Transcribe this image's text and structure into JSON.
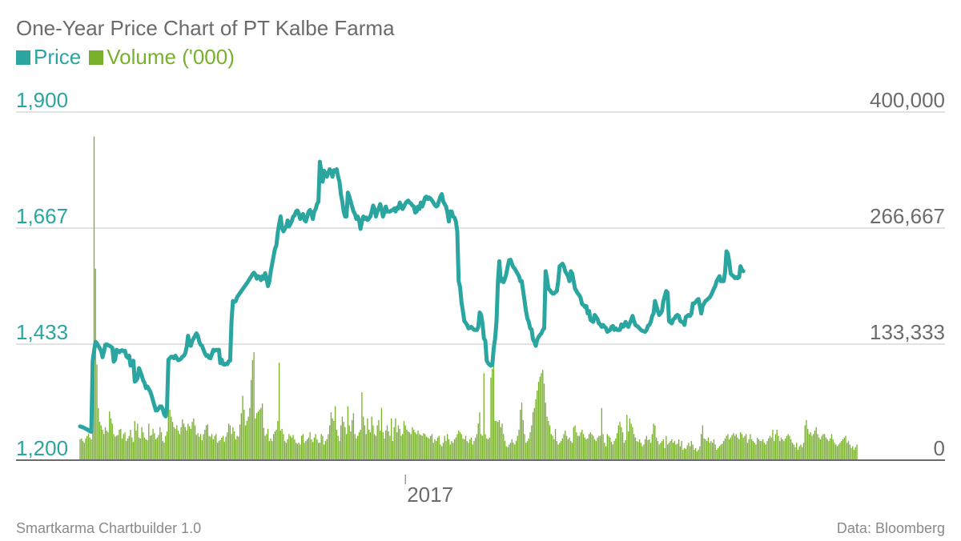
{
  "colors": {
    "price": "#2aa5a0",
    "volume": "#78b02b",
    "grid": "#e2e2e2",
    "axis": "#6b6b6b",
    "text": "#6b6b6b"
  },
  "footer": {
    "credit": "Smartkarma Chartbuilder 1.0",
    "source": "Data: Bloomberg"
  },
  "chart_data": {
    "type": "line",
    "title": "One-Year Price Chart of PT Kalbe Farma",
    "legend_position": "top-left",
    "grid": true,
    "x_ticks": [
      {
        "label": "2017",
        "index": 232
      }
    ],
    "y_left": {
      "name": "Price",
      "min": 1200,
      "max": 1900,
      "ticks": [
        "1,200",
        "1,433",
        "1,667",
        "1,900"
      ]
    },
    "y_right": {
      "name": "Volume ('000)",
      "min": 0,
      "max": 400000,
      "ticks": [
        "0",
        "133,333",
        "266,667",
        "400,000"
      ]
    },
    "series": [
      {
        "name": "Price",
        "axis": "left",
        "kind": "line",
        "values": [
          1268,
          1267,
          1266,
          1265,
          1263,
          1262,
          1260,
          1258,
          1257,
          1400,
          1420,
          1438,
          1435,
          1430,
          1425,
          1420,
          1407,
          1418,
          1432,
          1433,
          1431,
          1430,
          1428,
          1426,
          1398,
          1402,
          1422,
          1420,
          1417,
          1420,
          1421,
          1419,
          1420,
          1409,
          1406,
          1410,
          1390,
          1398,
          1400,
          1358,
          1360,
          1365,
          1385,
          1378,
          1370,
          1360,
          1355,
          1345,
          1348,
          1343,
          1338,
          1330,
          1320,
          1310,
          1300,
          1300,
          1304,
          1308,
          1308,
          1302,
          1292,
          1288,
          1306,
          1402,
          1405,
          1408,
          1408,
          1405,
          1410,
          1405,
          1401,
          1402,
          1404,
          1408,
          1410,
          1415,
          1427,
          1450,
          1432,
          1430,
          1440,
          1445,
          1450,
          1455,
          1450,
          1438,
          1432,
          1430,
          1422,
          1415,
          1410,
          1411,
          1406,
          1405,
          1413,
          1422,
          1420,
          1422,
          1421,
          1422,
          1395,
          1402,
          1393,
          1392,
          1394,
          1393,
          1399,
          1400,
          1480,
          1520,
          1518,
          1520,
          1528,
          1532,
          1536,
          1540,
          1544,
          1548,
          1552,
          1556,
          1560,
          1565,
          1569,
          1574,
          1577,
          1573,
          1565,
          1570,
          1568,
          1562,
          1570,
          1565,
          1576,
          1565,
          1550,
          1560,
          1580,
          1595,
          1610,
          1625,
          1632,
          1658,
          1675,
          1690,
          1668,
          1660,
          1665,
          1670,
          1682,
          1670,
          1675,
          1681,
          1690,
          1692,
          1700,
          1702,
          1696,
          1685,
          1690,
          1695,
          1683,
          1680,
          1690,
          1700,
          1703,
          1695,
          1685,
          1700,
          1705,
          1715,
          1720,
          1800,
          1780,
          1760,
          1782,
          1775,
          1770,
          1778,
          1785,
          1780,
          1770,
          1783,
          1781,
          1785,
          1770,
          1760,
          1735,
          1720,
          1700,
          1690,
          1690,
          1738,
          1730,
          1720,
          1710,
          1700,
          1695,
          1685,
          1690,
          1682,
          1665,
          1680,
          1690,
          1685,
          1688,
          1683,
          1686,
          1690,
          1700,
          1712,
          1705,
          1690,
          1700,
          1706,
          1715,
          1705,
          1690,
          1698,
          1710,
          1700,
          1700,
          1700,
          1702,
          1703,
          1706,
          1700,
          1708,
          1706,
          1718,
          1712,
          1705,
          1710,
          1716,
          1720,
          1722,
          1718,
          1716,
          1712,
          1710,
          1698,
          1700,
          1710,
          1705,
          1718,
          1710,
          1718,
          1728,
          1730,
          1725,
          1728,
          1726,
          1722,
          1718,
          1713,
          1710,
          1712,
          1722,
          1730,
          1735,
          1720,
          1715,
          1710,
          1698,
          1680,
          1700,
          1700,
          1690,
          1688,
          1680,
          1660,
          1560,
          1548,
          1518,
          1500,
          1480,
          1476,
          1472,
          1465,
          1466,
          1468,
          1465,
          1462,
          1462,
          1462,
          1468,
          1497,
          1492,
          1475,
          1445,
          1440,
          1400,
          1395,
          1392,
          1390,
          1392,
          1425,
          1445,
          1480,
          1560,
          1600,
          1560,
          1565,
          1558,
          1565,
          1575,
          1590,
          1602,
          1603,
          1595,
          1588,
          1585,
          1580,
          1575,
          1570,
          1560,
          1560,
          1540,
          1520,
          1500,
          1485,
          1478,
          1465,
          1463,
          1443,
          1438,
          1430,
          1442,
          1448,
          1452,
          1455,
          1462,
          1465,
          1580,
          1565,
          1545,
          1542,
          1538,
          1535,
          1535,
          1538,
          1540,
          1560,
          1590,
          1592,
          1595,
          1590,
          1580,
          1575,
          1570,
          1560,
          1580,
          1575,
          1560,
          1545,
          1540,
          1535,
          1532,
          1526,
          1514,
          1512,
          1508,
          1510,
          1495,
          1500,
          1482,
          1480,
          1478,
          1492,
          1488,
          1484,
          1475,
          1473,
          1468,
          1472,
          1468,
          1466,
          1458,
          1460,
          1462,
          1468,
          1470,
          1462,
          1465,
          1462,
          1462,
          1462,
          1473,
          1468,
          1470,
          1478,
          1472,
          1468,
          1475,
          1482,
          1490,
          1480,
          1472,
          1470,
          1468,
          1465,
          1462,
          1460,
          1459,
          1458,
          1462,
          1470,
          1472,
          1478,
          1490,
          1495,
          1520,
          1510,
          1500,
          1492,
          1495,
          1500,
          1520,
          1530,
          1540,
          1537,
          1480,
          1477,
          1475,
          1483,
          1485,
          1490,
          1492,
          1490,
          1480,
          1478,
          1478,
          1472,
          1488,
          1490,
          1492,
          1490,
          1495,
          1515,
          1515,
          1518,
          1522,
          1524,
          1510,
          1495,
          1510,
          1515,
          1520,
          1522,
          1525,
          1527,
          1532,
          1538,
          1545,
          1550,
          1560,
          1565,
          1570,
          1560,
          1560,
          1560,
          1578,
          1620,
          1615,
          1598,
          1575,
          1572,
          1570,
          1566,
          1568,
          1566,
          1568,
          1590,
          1583,
          1580
        ]
      },
      {
        "name": "Volume ('000)",
        "axis": "right",
        "kind": "bar",
        "values": [
          24000,
          25000,
          22000,
          20000,
          25000,
          28000,
          30000,
          26000,
          24000,
          38000,
          372000,
          220000,
          110000,
          60000,
          44000,
          40000,
          35000,
          30000,
          38000,
          34000,
          32000,
          56000,
          48000,
          42000,
          30000,
          27000,
          28000,
          29000,
          35000,
          36000,
          25000,
          30000,
          32000,
          22000,
          25000,
          28000,
          35000,
          26000,
          21000,
          45000,
          34000,
          42000,
          26000,
          25000,
          38000,
          32000,
          26000,
          24000,
          23000,
          42000,
          28000,
          29000,
          36000,
          31000,
          24000,
          26000,
          29000,
          38000,
          32000,
          22000,
          20000,
          28000,
          33000,
          90000,
          58000,
          50000,
          44000,
          38000,
          36000,
          40000,
          34000,
          30000,
          38000,
          47000,
          42000,
          38000,
          34000,
          42000,
          39000,
          36000,
          44000,
          48000,
          40000,
          29000,
          31000,
          27000,
          30000,
          23000,
          30000,
          35000,
          40000,
          41000,
          28000,
          27000,
          30000,
          24000,
          28000,
          30000,
          20000,
          22000,
          23000,
          26000,
          28000,
          21000,
          27000,
          32000,
          42000,
          40000,
          30000,
          38000,
          33000,
          24000,
          28000,
          27000,
          41000,
          54000,
          74000,
          58000,
          40000,
          45000,
          50000,
          60000,
          92000,
          115000,
          124000,
          48000,
          54000,
          56000,
          58000,
          60000,
          65000,
          37000,
          28000,
          30000,
          36000,
          22000,
          25000,
          22000,
          30000,
          33000,
          35000,
          45000,
          112000,
          34000,
          36000,
          30000,
          22000,
          20000,
          24000,
          30000,
          28000,
          26000,
          29000,
          24000,
          20000,
          19000,
          20000,
          18000,
          28000,
          30000,
          20000,
          22000,
          24000,
          26000,
          32000,
          24000,
          21000,
          26000,
          30000,
          24000,
          20000,
          20000,
          30000,
          28000,
          18000,
          22000,
          24000,
          30000,
          40000,
          55000,
          48000,
          45000,
          62000,
          35000,
          28000,
          22000,
          40000,
          50000,
          44000,
          38000,
          30000,
          62000,
          40000,
          33000,
          46000,
          54000,
          30000,
          25000,
          28000,
          32000,
          35000,
          78000,
          50000,
          40000,
          30000,
          48000,
          35000,
          32000,
          50000,
          40000,
          30000,
          28000,
          40000,
          46000,
          34000,
          60000,
          32000,
          25000,
          34000,
          40000,
          33000,
          28000,
          48000,
          22000,
          38000,
          48000,
          32000,
          40000,
          36000,
          28000,
          30000,
          45000,
          40000,
          35000,
          33000,
          32000,
          30000,
          38000,
          35000,
          32000,
          30000,
          34000,
          30000,
          29000,
          28000,
          31000,
          30000,
          27000,
          26000,
          25000,
          28000,
          30000,
          20000,
          24000,
          22000,
          26000,
          28000,
          18000,
          16000,
          20000,
          28000,
          22000,
          30000,
          24000,
          18000,
          22000,
          20000,
          24000,
          26000,
          30000,
          34000,
          32000,
          30000,
          25000,
          24000,
          28000,
          22000,
          20000,
          24000,
          26000,
          18000,
          22000,
          26000,
          30000,
          42000,
          55000,
          30000,
          28000,
          100000,
          30000,
          25000,
          24000,
          26000,
          95000,
          105000,
          110000,
          45000,
          45000,
          44000,
          46000,
          38000,
          42000,
          30000,
          22000,
          16000,
          15000,
          18000,
          20000,
          24000,
          20000,
          18000,
          22000,
          28000,
          35000,
          58000,
          66000,
          46000,
          30000,
          20000,
          22000,
          25000,
          32000,
          40000,
          55000,
          60000,
          70000,
          80000,
          90000,
          96000,
          100000,
          104000,
          88000,
          66000,
          50000,
          45000,
          40000,
          30000,
          28000,
          24000,
          36000,
          22000,
          18000,
          20000,
          22000,
          25000,
          30000,
          34000,
          28000,
          24000,
          26000,
          22000,
          20000,
          38000,
          40000,
          32000,
          28000,
          28000,
          32000,
          35000,
          30000,
          26000,
          24000,
          25000,
          30000,
          32000,
          30000,
          28000,
          24000,
          22000,
          26000,
          28000,
          28000,
          60000,
          30000,
          20000,
          16000,
          30000,
          28000,
          26000,
          21000,
          18000,
          22000,
          25000,
          31000,
          40000,
          44000,
          38000,
          32000,
          20000,
          23000,
          52000,
          33000,
          48000,
          42000,
          38000,
          30000,
          26000,
          22000,
          21000,
          24000,
          20000,
          16000,
          18000,
          24000,
          28000,
          23000,
          24000,
          20000,
          30000,
          42000,
          40000,
          26000,
          22000,
          18000,
          20000,
          22000,
          24000,
          14000,
          28000,
          18000,
          20000,
          22000,
          24000,
          20000,
          22000,
          18000,
          19000,
          24000,
          16000,
          22000,
          12000,
          14000,
          13000,
          17000,
          20000,
          16000,
          22000,
          18000,
          12000,
          14000,
          10000,
          12000,
          16000,
          30000,
          40000,
          25000,
          24000,
          22000,
          26000,
          20000,
          22000,
          20000,
          24000,
          18000,
          12000,
          14000,
          16000,
          18000,
          19000,
          22000,
          25000,
          28000,
          30000,
          24000,
          26000,
          29000,
          31000,
          28000,
          30000,
          26000,
          24000,
          32000,
          30000,
          26000,
          28000,
          30000,
          20000,
          24000,
          30000,
          24000,
          22000,
          20000,
          18000,
          26000,
          24000,
          22000,
          22000,
          24000,
          20000,
          18000,
          22000,
          25000,
          28000,
          26000,
          35000,
          22000,
          30000,
          35000,
          28000,
          22000,
          26000,
          24000,
          22000,
          25000,
          28000,
          30000,
          28000,
          24000,
          20000,
          18000,
          15000,
          20000,
          12000,
          16000,
          18000,
          15000,
          20000,
          40000,
          46000,
          36000,
          30000,
          32000,
          28000,
          30000,
          34000,
          38000,
          30000,
          26000,
          24000,
          28000,
          30000,
          30000,
          26000,
          24000,
          22000,
          25000,
          30000,
          24000,
          20000,
          18000,
          16000,
          18000,
          20000,
          22000,
          24000,
          26000,
          28000,
          20000,
          22000,
          18000,
          14000,
          16000,
          12000,
          15000,
          18000
        ]
      }
    ]
  }
}
